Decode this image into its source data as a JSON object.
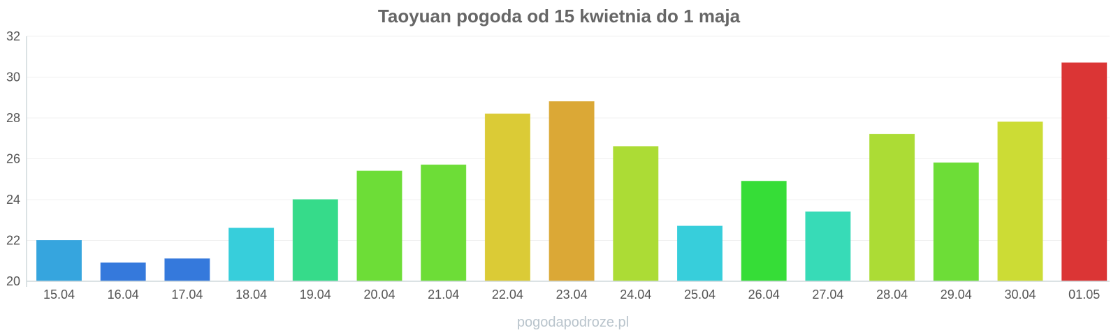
{
  "chart_data": {
    "type": "bar",
    "title": "Taoyuan pogoda od 15 kwietnia do 1 maja",
    "xlabel": "",
    "ylabel": "",
    "ylim": [
      20,
      32
    ],
    "yticks": [
      "20",
      "22",
      "24",
      "26",
      "28",
      "30",
      "32"
    ],
    "grid": true,
    "categories": [
      "15.04",
      "16.04",
      "17.04",
      "18.04",
      "19.04",
      "20.04",
      "21.04",
      "22.04",
      "23.04",
      "24.04",
      "25.04",
      "26.04",
      "27.04",
      "28.04",
      "29.04",
      "30.04",
      "01.05"
    ],
    "values": [
      22.0,
      20.9,
      21.1,
      22.6,
      24.0,
      25.4,
      25.7,
      28.2,
      28.8,
      26.6,
      22.7,
      24.9,
      23.4,
      27.2,
      25.8,
      27.8,
      30.7
    ],
    "colors": [
      "#36a5de",
      "#3579dc",
      "#3579dc",
      "#37cedb",
      "#36db8a",
      "#6ddd37",
      "#6ddd37",
      "#dbcb36",
      "#dba836",
      "#acdc35",
      "#37cedb",
      "#36dd37",
      "#37dbb7",
      "#acdc35",
      "#6ddd37",
      "#ccdc35",
      "#db3535"
    ]
  },
  "watermark": "pogodapodroze.pl"
}
